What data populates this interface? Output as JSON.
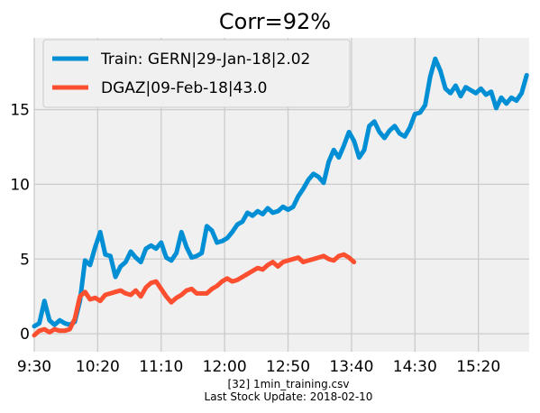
{
  "chart_data": {
    "type": "line",
    "title": "Corr=92%",
    "xlabel": "",
    "ylabel": "",
    "x_tick_labels": [
      "9:30",
      "10:20",
      "11:10",
      "12:00",
      "12:50",
      "13:40",
      "14:30",
      "15:20"
    ],
    "y_ticks": [
      0,
      5,
      10,
      15
    ],
    "xlim": [
      "9:30",
      "16:00"
    ],
    "ylim": [
      -1.2,
      19.8
    ],
    "grid": true,
    "legend_position": "top-left",
    "caption_lines": [
      "[32] 1min_training.csv",
      "Last Stock Update: 2018-02-10"
    ],
    "colors": {
      "plot_bg": "#f0f0f0",
      "grid": "#cbcbcb"
    },
    "series": [
      {
        "name": "Train: GERN|29-Jan-18|2.02",
        "color": "#008fd5",
        "x": [
          "9:30",
          "9:34",
          "9:38",
          "9:42",
          "9:46",
          "9:50",
          "9:54",
          "9:58",
          "10:02",
          "10:06",
          "10:10",
          "10:14",
          "10:18",
          "10:22",
          "10:26",
          "10:30",
          "10:34",
          "10:38",
          "10:42",
          "10:46",
          "10:50",
          "10:54",
          "10:58",
          "11:02",
          "11:06",
          "11:10",
          "11:14",
          "11:18",
          "11:22",
          "11:26",
          "11:30",
          "11:34",
          "11:38",
          "11:42",
          "11:46",
          "11:50",
          "11:54",
          "11:58",
          "12:02",
          "12:06",
          "12:10",
          "12:14",
          "12:18",
          "12:22",
          "12:26",
          "12:30",
          "12:34",
          "12:38",
          "12:42",
          "12:46",
          "12:50",
          "12:54",
          "12:58",
          "13:02",
          "13:06",
          "13:10",
          "13:14",
          "13:18",
          "13:22",
          "13:26",
          "13:30",
          "13:34",
          "13:38",
          "13:42",
          "13:46",
          "13:50",
          "13:54",
          "13:58",
          "14:02",
          "14:06",
          "14:10",
          "14:14",
          "14:18",
          "14:22",
          "14:26",
          "14:30",
          "14:34",
          "14:38",
          "14:42",
          "14:46",
          "14:50",
          "14:54",
          "14:58",
          "15:02",
          "15:06",
          "15:10",
          "15:14",
          "15:18",
          "15:22",
          "15:26",
          "15:30",
          "15:34",
          "15:38",
          "15:42",
          "15:46",
          "15:50",
          "15:54",
          "15:58"
        ],
        "values": [
          0.5,
          0.7,
          2.2,
          0.9,
          0.6,
          0.9,
          0.7,
          0.6,
          0.8,
          2.2,
          4.9,
          4.6,
          5.8,
          6.8,
          5.3,
          5.2,
          3.8,
          4.5,
          4.8,
          5.5,
          5.1,
          4.8,
          5.7,
          5.9,
          5.7,
          6.1,
          5.1,
          4.9,
          5.4,
          6.8,
          5.8,
          5.1,
          5.2,
          5.4,
          7.2,
          6.9,
          6.1,
          6.2,
          6.4,
          6.8,
          7.3,
          7.5,
          8.1,
          7.9,
          8.2,
          8.0,
          8.4,
          8.1,
          8.2,
          8.5,
          8.3,
          8.5,
          9.2,
          9.7,
          10.3,
          10.7,
          10.5,
          10.1,
          11.5,
          12.3,
          11.8,
          12.6,
          13.5,
          12.9,
          11.8,
          12.3,
          13.9,
          14.2,
          13.5,
          13.1,
          13.6,
          13.9,
          13.4,
          13.2,
          13.8,
          14.7,
          14.8,
          15.3,
          17.2,
          18.4,
          17.6,
          16.4,
          16.1,
          16.6,
          15.9,
          16.5,
          16.3,
          16.1,
          16.4,
          16.0,
          16.2,
          15.1,
          15.8,
          15.4,
          15.8,
          15.6,
          16.1,
          17.3
        ]
      },
      {
        "name": "DGAZ|09-Feb-18|43.0",
        "color": "#fc4f30",
        "x": [
          "9:30",
          "9:34",
          "9:38",
          "9:42",
          "9:46",
          "9:50",
          "9:54",
          "9:58",
          "10:02",
          "10:06",
          "10:10",
          "10:14",
          "10:18",
          "10:22",
          "10:26",
          "10:30",
          "10:34",
          "10:38",
          "10:42",
          "10:46",
          "10:50",
          "10:54",
          "10:58",
          "11:02",
          "11:06",
          "11:10",
          "11:14",
          "11:18",
          "11:22",
          "11:26",
          "11:30",
          "11:34",
          "11:38",
          "11:42",
          "11:46",
          "11:50",
          "11:54",
          "11:58",
          "12:02",
          "12:06",
          "12:10",
          "12:14",
          "12:18",
          "12:22",
          "12:26",
          "12:30",
          "12:34",
          "12:38",
          "12:42",
          "12:46",
          "12:50",
          "12:54",
          "12:58",
          "13:02",
          "13:06",
          "13:10",
          "13:14",
          "13:18",
          "13:22",
          "13:26",
          "13:30",
          "13:34",
          "13:38",
          "13:42"
        ],
        "values": [
          -0.1,
          0.2,
          0.3,
          0.1,
          0.3,
          0.2,
          0.2,
          0.3,
          1.0,
          2.5,
          2.8,
          2.3,
          2.4,
          2.2,
          2.6,
          2.7,
          2.8,
          2.9,
          2.7,
          2.6,
          2.9,
          2.5,
          3.1,
          3.4,
          3.5,
          3.0,
          2.5,
          2.1,
          2.4,
          2.6,
          2.9,
          3.0,
          2.7,
          2.7,
          2.7,
          3.0,
          3.2,
          3.5,
          3.7,
          3.5,
          3.6,
          3.8,
          4.0,
          4.2,
          4.4,
          4.3,
          4.6,
          4.8,
          4.5,
          4.8,
          4.9,
          5.0,
          5.1,
          4.8,
          4.9,
          5.0,
          5.1,
          5.2,
          5.0,
          4.9,
          5.2,
          5.3,
          5.1,
          4.8
        ]
      }
    ]
  }
}
